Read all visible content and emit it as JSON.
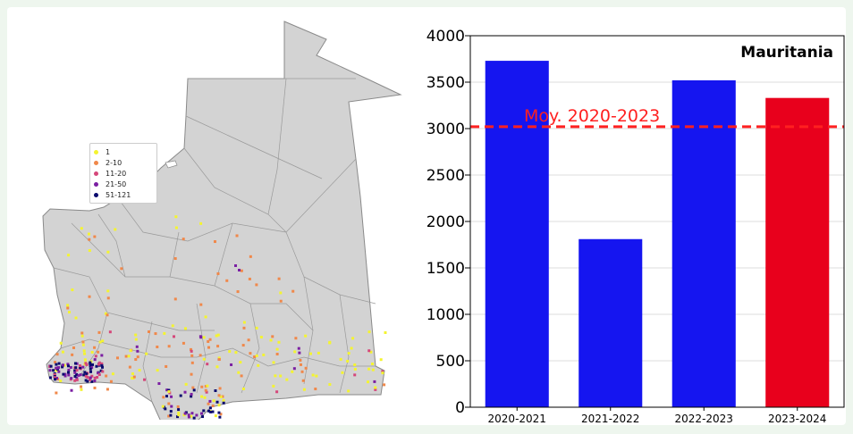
{
  "map": {
    "legend": [
      {
        "label": "1",
        "color": "#f4f430"
      },
      {
        "label": "2-10",
        "color": "#f0884a"
      },
      {
        "label": "11-20",
        "color": "#d5477a"
      },
      {
        "label": "21-50",
        "color": "#7b1fa2"
      },
      {
        "label": "51-121",
        "color": "#0b0b6e"
      }
    ]
  },
  "chart_data": {
    "type": "bar",
    "title": "Mauritania",
    "categories": [
      "2020-2021",
      "2021-2022",
      "2022-2023",
      "2023-2024"
    ],
    "values": [
      3730,
      1810,
      3520,
      3330
    ],
    "colors": [
      "#1515f0",
      "#1515f0",
      "#1515f0",
      "#e8001c"
    ],
    "ylim": [
      0,
      4000
    ],
    "yticks": [
      0,
      500,
      1000,
      1500,
      2000,
      2500,
      3000,
      3500,
      4000
    ],
    "grid": true,
    "reference_line": {
      "label": "Moy. 2020-2023",
      "value": 3020,
      "color": "#ff2020"
    }
  }
}
